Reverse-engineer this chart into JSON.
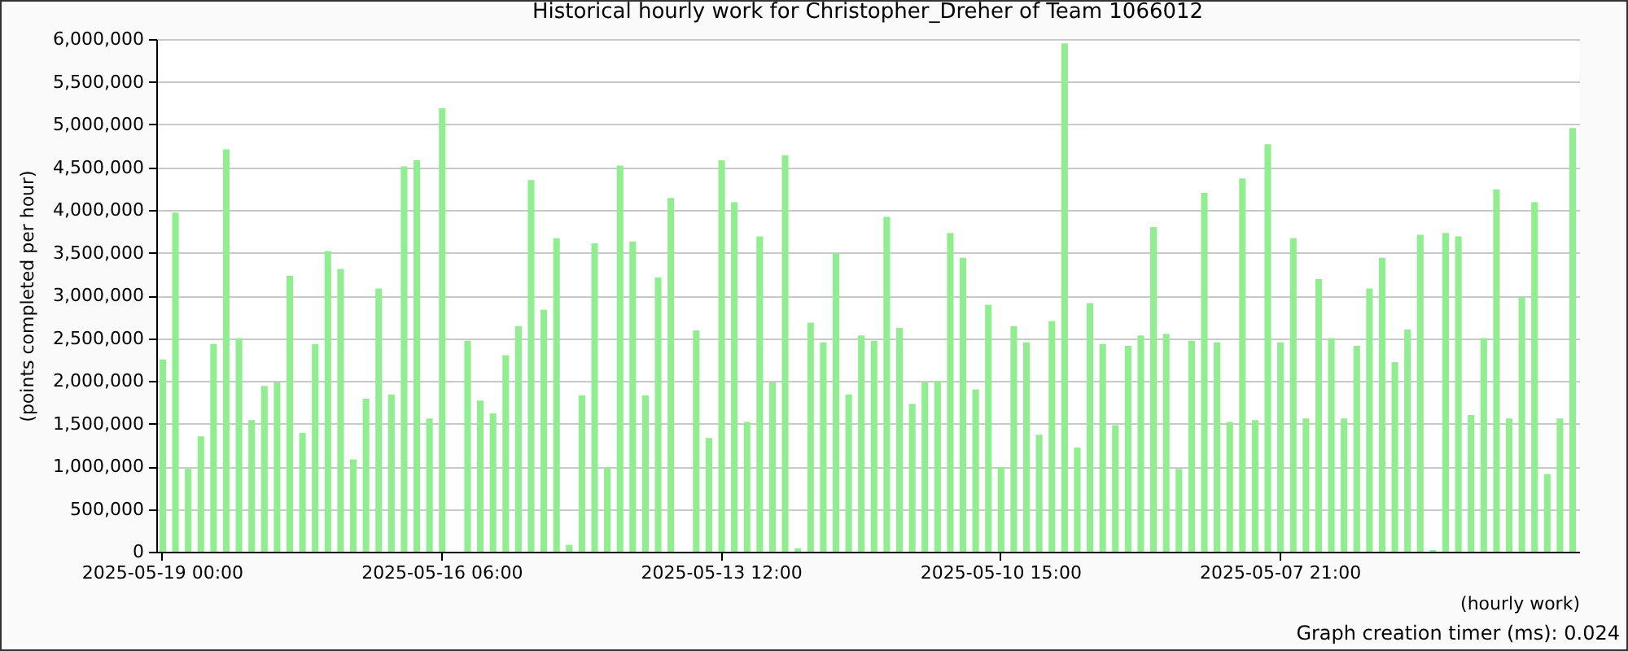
{
  "chart_data": {
    "type": "bar",
    "title": "Historical hourly work for Christopher_Dreher of Team 1066012",
    "xlabel": "(hourly work)",
    "ylabel": "(points completed per hour)",
    "annotations": [
      "Graph creation timer (ms): 0.024"
    ],
    "categories": [
      "2025-05-19 00:00",
      null,
      null,
      null,
      null,
      null,
      null,
      null,
      null,
      null,
      null,
      null,
      null,
      null,
      null,
      null,
      null,
      null,
      null,
      null,
      null,
      null,
      "2025-05-16 06:00",
      null,
      null,
      null,
      null,
      null,
      null,
      null,
      null,
      null,
      null,
      null,
      null,
      null,
      null,
      null,
      null,
      null,
      null,
      null,
      null,
      null,
      "2025-05-13 12:00",
      null,
      null,
      null,
      null,
      null,
      null,
      null,
      null,
      null,
      null,
      null,
      null,
      null,
      null,
      null,
      null,
      null,
      null,
      null,
      null,
      null,
      "2025-05-10 15:00",
      null,
      null,
      null,
      null,
      null,
      null,
      null,
      null,
      null,
      null,
      null,
      null,
      null,
      null,
      null,
      null,
      null,
      null,
      null,
      null,
      null,
      "2025-05-07 21:00",
      null,
      null,
      null,
      null,
      null,
      null,
      null,
      null,
      null,
      null,
      null,
      null,
      null,
      null,
      null,
      null,
      null,
      null,
      null,
      null,
      null,
      null,
      null
    ],
    "values": [
      2250000,
      3970000,
      970000,
      1350000,
      2430000,
      4710000,
      2500000,
      1540000,
      1940000,
      1980000,
      3230000,
      1390000,
      2430000,
      3520000,
      3310000,
      1080000,
      1790000,
      3080000,
      1840000,
      4510000,
      4580000,
      1560000,
      5190000,
      null,
      2470000,
      1770000,
      1620000,
      2300000,
      2640000,
      4350000,
      2830000,
      3670000,
      80000,
      1830000,
      3610000,
      990000,
      4520000,
      3630000,
      1830000,
      3210000,
      4140000,
      null,
      2590000,
      1330000,
      4580000,
      4090000,
      1520000,
      3690000,
      1980000,
      4640000,
      40000,
      2680000,
      2450000,
      3490000,
      1840000,
      2530000,
      2470000,
      3920000,
      2620000,
      1730000,
      1980000,
      2000000,
      3730000,
      3440000,
      1900000,
      2890000,
      990000,
      2640000,
      2450000,
      1370000,
      2700000,
      5950000,
      1220000,
      2910000,
      2430000,
      1480000,
      2410000,
      2530000,
      3800000,
      2550000,
      970000,
      2470000,
      4200000,
      2450000,
      1520000,
      4370000,
      1540000,
      4770000,
      2450000,
      3670000,
      1560000,
      3190000,
      2500000,
      1560000,
      2410000,
      3080000,
      3440000,
      2220000,
      2600000,
      3710000,
      20000,
      3730000,
      3690000,
      1600000,
      2500000,
      4240000,
      1560000,
      2980000,
      4090000,
      910000,
      1560000,
      4960000
    ],
    "color": "#90ee90",
    "ylim": [
      0,
      6000000
    ],
    "yticks": [
      0,
      {
        "value": 500000,
        "label": "500,000"
      },
      {
        "value": 1000000,
        "label": "1,000,000"
      },
      {
        "value": 1500000,
        "label": "1,500,000"
      },
      {
        "value": 2000000,
        "label": "2,000,000"
      },
      {
        "value": 2500000,
        "label": "2,500,000"
      },
      {
        "value": 3000000,
        "label": "3,000,000"
      },
      {
        "value": 3500000,
        "label": "3,500,000"
      },
      {
        "value": 4000000,
        "label": "4,000,000"
      },
      {
        "value": 4500000,
        "label": "4,500,000"
      },
      {
        "value": 5000000,
        "label": "5,000,000"
      },
      {
        "value": 5500000,
        "label": "5,500,000"
      },
      {
        "value": 6000000,
        "label": "6,000,000"
      }
    ],
    "grid": "y"
  }
}
